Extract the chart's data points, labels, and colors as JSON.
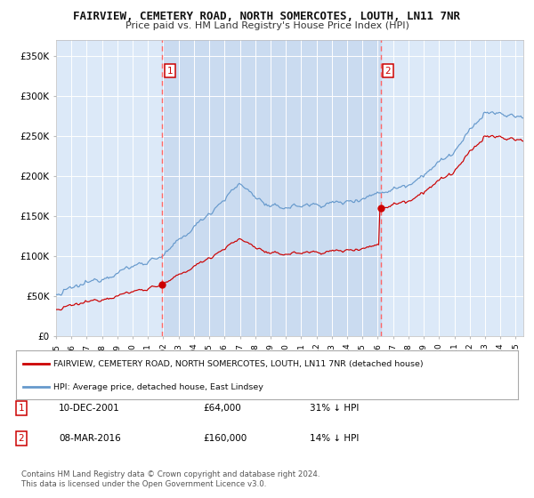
{
  "title": "FAIRVIEW, CEMETERY ROAD, NORTH SOMERCOTES, LOUTH, LN11 7NR",
  "subtitle": "Price paid vs. HM Land Registry's House Price Index (HPI)",
  "xlim_start": 1995.0,
  "xlim_end": 2025.5,
  "ylim": [
    0,
    370000
  ],
  "yticks": [
    0,
    50000,
    100000,
    150000,
    200000,
    250000,
    300000,
    350000
  ],
  "ytick_labels": [
    "£0",
    "£50K",
    "£100K",
    "£150K",
    "£200K",
    "£250K",
    "£300K",
    "£350K"
  ],
  "plot_bg_color": "#dce9f8",
  "grid_color": "#ffffff",
  "red_line_color": "#cc0000",
  "blue_line_color": "#6699cc",
  "dashed_vline_color": "#ff6666",
  "span_color": "#c8daf0",
  "purchase1_x": 2001.94,
  "purchase1_y": 64000,
  "purchase2_x": 2016.18,
  "purchase2_y": 160000,
  "legend_red_label": "FAIRVIEW, CEMETERY ROAD, NORTH SOMERCOTES, LOUTH, LN11 7NR (detached house)",
  "legend_blue_label": "HPI: Average price, detached house, East Lindsey",
  "table_row1_num": "1",
  "table_row1_date": "10-DEC-2001",
  "table_row1_price": "£64,000",
  "table_row1_hpi": "31% ↓ HPI",
  "table_row2_num": "2",
  "table_row2_date": "08-MAR-2016",
  "table_row2_price": "£160,000",
  "table_row2_hpi": "14% ↓ HPI",
  "footnote": "Contains HM Land Registry data © Crown copyright and database right 2024.\nThis data is licensed under the Open Government Licence v3.0.",
  "title_fontsize": 9,
  "subtitle_fontsize": 8
}
